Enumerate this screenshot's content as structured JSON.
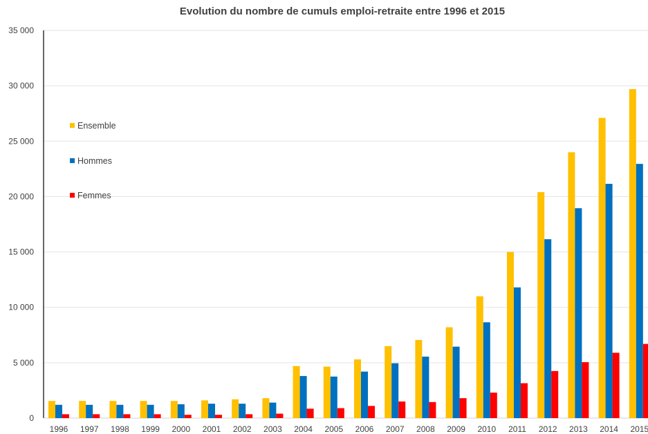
{
  "chart_data": {
    "type": "bar",
    "title": "Evolution du nombre de cumuls emploi-retraite entre 1996 et 2015",
    "xlabel": "",
    "ylabel": "",
    "categories": [
      "1996",
      "1997",
      "1998",
      "1999",
      "2000",
      "2001",
      "2002",
      "2003",
      "2004",
      "2005",
      "2006",
      "2007",
      "2008",
      "2009",
      "2010",
      "2011",
      "2012",
      "2013",
      "2014",
      "2015"
    ],
    "ylim": [
      0,
      35000
    ],
    "yticks": [
      0,
      5000,
      10000,
      15000,
      20000,
      25000,
      30000,
      35000
    ],
    "ytick_labels": [
      "0",
      "5 000",
      "10 000",
      "15 000",
      "20 000",
      "25 000",
      "30 000",
      "35 000"
    ],
    "grid": true,
    "legend_position": "left, inside plot area",
    "series": [
      {
        "name": "Ensemble",
        "color": "#FFC000",
        "values": [
          1550,
          1550,
          1550,
          1550,
          1550,
          1600,
          1700,
          1800,
          4700,
          4650,
          5300,
          6500,
          7050,
          8200,
          11000,
          15000,
          20400,
          24000,
          27100,
          29700
        ]
      },
      {
        "name": "Hommes",
        "color": "#0070C0",
        "values": [
          1200,
          1200,
          1200,
          1200,
          1250,
          1300,
          1300,
          1400,
          3800,
          3750,
          4200,
          4950,
          5550,
          6450,
          8650,
          11800,
          16150,
          18950,
          21150,
          22950
        ]
      },
      {
        "name": "Femmes",
        "color": "#FF0000",
        "values": [
          350,
          350,
          350,
          350,
          300,
          300,
          350,
          400,
          850,
          900,
          1100,
          1500,
          1450,
          1800,
          2300,
          3150,
          4250,
          5050,
          5900,
          6700
        ]
      }
    ]
  }
}
